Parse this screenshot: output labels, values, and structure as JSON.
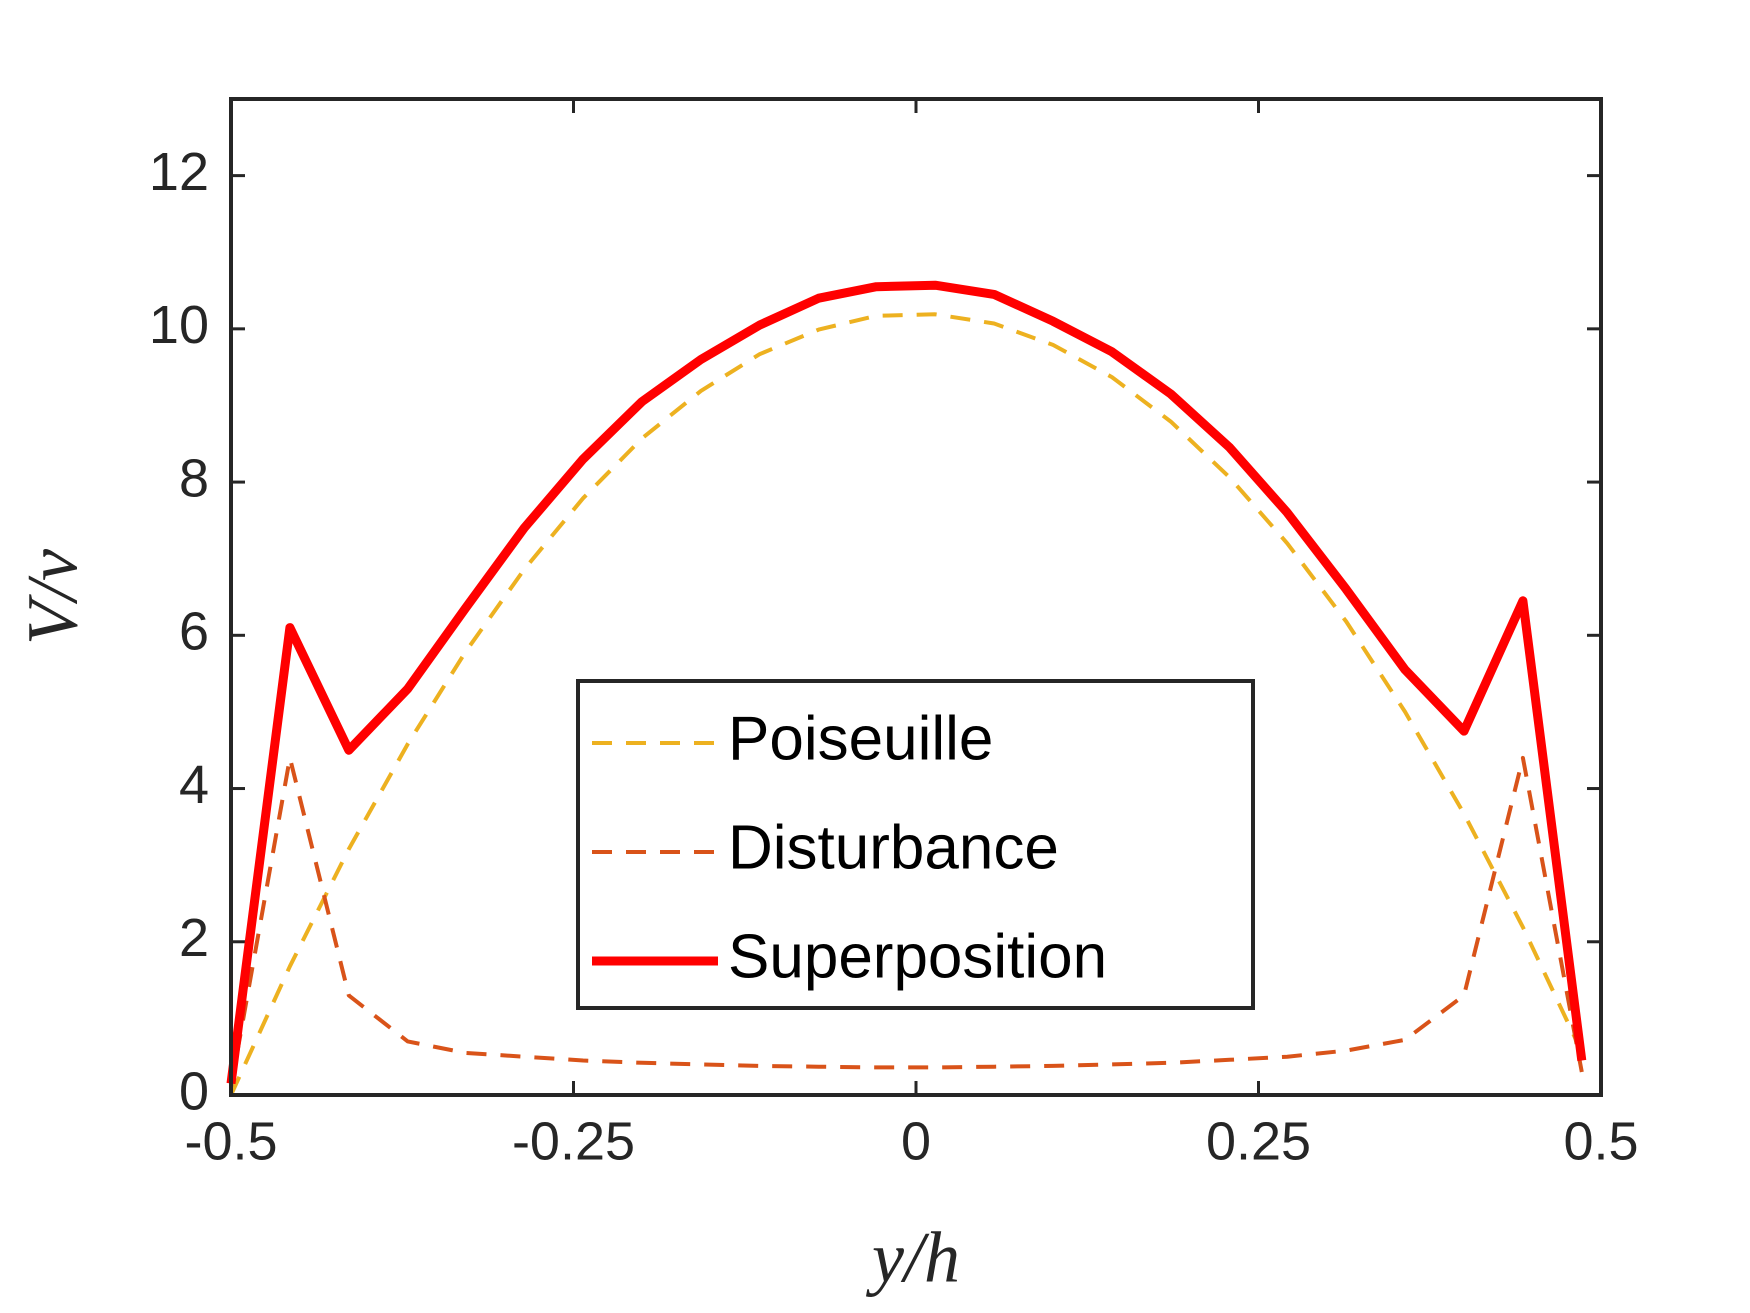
{
  "chart_data": {
    "type": "line",
    "xlabel": "y/h",
    "ylabel": "V/v",
    "x": [
      -0.5,
      -0.457,
      -0.414,
      -0.371,
      -0.329,
      -0.286,
      -0.243,
      -0.2,
      -0.157,
      -0.114,
      -0.071,
      -0.029,
      0.014,
      0.057,
      0.1,
      0.143,
      0.186,
      0.229,
      0.271,
      0.314,
      0.357,
      0.4,
      0.443,
      0.486
    ],
    "series": [
      {
        "name": "Poiseuille",
        "color": "#EDB120",
        "line_style": "dashed",
        "values": [
          0,
          1.68,
          3.21,
          4.58,
          5.78,
          6.86,
          7.79,
          8.57,
          9.19,
          9.67,
          9.99,
          10.17,
          10.19,
          10.07,
          9.79,
          9.37,
          8.79,
          8.06,
          7.2,
          6.18,
          5.0,
          3.67,
          2.19,
          0.56
        ]
      },
      {
        "name": "Disturbance",
        "color": "#D95319",
        "line_style": "dashed",
        "values": [
          0.1,
          4.4,
          1.3,
          0.7,
          0.55,
          0.5,
          0.45,
          0.42,
          0.4,
          0.38,
          0.37,
          0.36,
          0.36,
          0.37,
          0.38,
          0.4,
          0.42,
          0.46,
          0.5,
          0.58,
          0.72,
          1.3,
          4.4,
          0.3
        ]
      },
      {
        "name": "Superposition",
        "color": "#FF0000",
        "line_style": "solid",
        "values": [
          0.15,
          6.1,
          4.5,
          5.3,
          6.35,
          7.4,
          8.3,
          9.05,
          9.6,
          10.05,
          10.4,
          10.55,
          10.57,
          10.45,
          10.1,
          9.7,
          9.15,
          8.45,
          7.6,
          6.6,
          5.55,
          4.75,
          6.45,
          0.45
        ]
      }
    ],
    "xlim": [
      -0.5,
      0.5
    ],
    "xticks": [
      -0.5,
      -0.25,
      0,
      0.25,
      0.5
    ],
    "ylim": [
      0,
      13
    ],
    "yticks": [
      0,
      2,
      4,
      6,
      8,
      10,
      12
    ],
    "grid": false
  }
}
